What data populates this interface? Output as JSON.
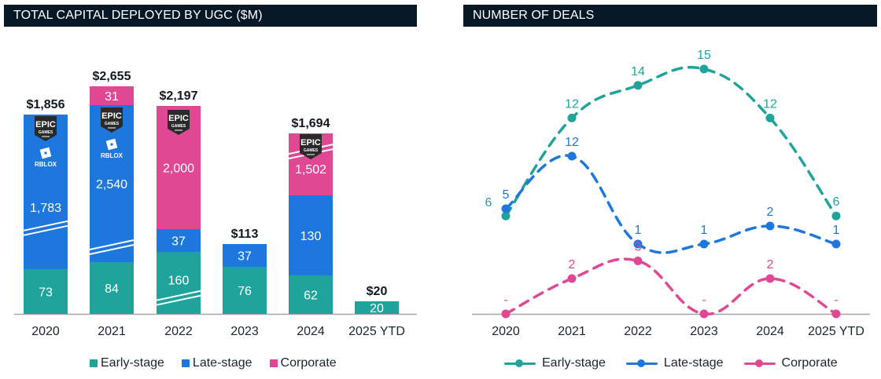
{
  "colors": {
    "early": "#1fa39a",
    "late": "#1d77dc",
    "corporate": "#e04894",
    "title_bg": "#061726",
    "axis": "#a0a4a8",
    "text_dark": "#1b2430"
  },
  "chart_data": [
    {
      "type": "bar",
      "stacked": true,
      "title": "TOTAL CAPITAL DEPLOYED BY UGC ($M)",
      "categories": [
        "2020",
        "2021",
        "2022",
        "2023",
        "2024",
        "2025 YTD"
      ],
      "series": [
        {
          "name": "Early-stage",
          "values": [
            73,
            84,
            160,
            76,
            62,
            20
          ]
        },
        {
          "name": "Late-stage",
          "values": [
            1783,
            2540,
            37,
            37,
            130,
            null
          ]
        },
        {
          "name": "Corporate",
          "values": [
            null,
            31,
            2000,
            null,
            1502,
            null
          ]
        }
      ],
      "totals": [
        "$1,856",
        "$2,655",
        "$2,197",
        "$113",
        "$1,694",
        "$20"
      ],
      "segment_labels": {
        "early": [
          "73",
          "84",
          "160",
          "76",
          "62",
          "20"
        ],
        "late": [
          "1,783",
          "2,540",
          "37",
          "37",
          "130",
          ""
        ],
        "corporate": [
          "",
          "31",
          "2,000",
          "",
          "1,502",
          ""
        ]
      },
      "axis_breaks": [
        "2020 late-stage",
        "2021 late-stage",
        "2022 early-stage",
        "2024 corporate"
      ],
      "logos": [
        {
          "category": "2020",
          "items": [
            "epic-games",
            "roblox"
          ]
        },
        {
          "category": "2021",
          "items": [
            "epic-games",
            "roblox"
          ]
        },
        {
          "category": "2022",
          "items": [
            "epic-games"
          ]
        },
        {
          "category": "2024",
          "items": [
            "epic-games"
          ]
        }
      ],
      "legend": [
        "Early-stage",
        "Late-stage",
        "Corporate"
      ],
      "legend_position": "bottom",
      "grid": false
    },
    {
      "type": "line",
      "title": "NUMBER OF DEALS",
      "categories": [
        "2020",
        "2021",
        "2022",
        "2023",
        "2024",
        "2025 YTD"
      ],
      "series": [
        {
          "name": "Early-stage",
          "values": [
            6,
            12,
            14,
            15,
            12,
            6
          ],
          "labels": [
            "6",
            "12",
            "14",
            "15",
            "12",
            "6"
          ]
        },
        {
          "name": "Late-stage",
          "values": [
            5,
            12,
            1,
            1,
            2,
            1
          ],
          "labels": [
            "5",
            "12",
            "1",
            "1",
            "2",
            "1"
          ]
        },
        {
          "name": "Corporate",
          "values": [
            0,
            2,
            3,
            0,
            2,
            0
          ],
          "labels": [
            "-",
            "2",
            "3",
            "-",
            "2",
            "-"
          ]
        }
      ],
      "line_style": "dashed",
      "legend": [
        "Early-stage",
        "Late-stage",
        "Corporate"
      ],
      "legend_position": "bottom",
      "grid": false
    }
  ],
  "logo_text": {
    "epic_top": "EPIC",
    "epic_bottom": "GAMES",
    "roblox": "RBLOX"
  }
}
